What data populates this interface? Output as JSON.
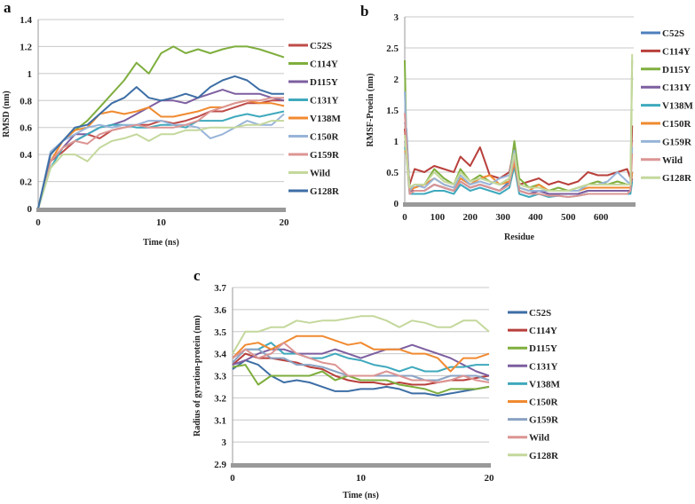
{
  "chart_data": [
    {
      "panel": "a",
      "type": "line",
      "xlabel": "Time (ns)",
      "ylabel": "RMSD (nm)",
      "xlim": [
        0,
        20
      ],
      "ylim": [
        0,
        1.4
      ],
      "xticks": [
        0,
        10,
        20
      ],
      "yticks": [
        0,
        0.2,
        0.4,
        0.6,
        0.8,
        1,
        1.2,
        1.4
      ],
      "grid": true,
      "legend": "right",
      "x": [
        0,
        1,
        2,
        3,
        4,
        5,
        6,
        7,
        8,
        9,
        10,
        11,
        12,
        13,
        14,
        15,
        16,
        17,
        18,
        19,
        20
      ],
      "series": [
        {
          "name": "C52S",
          "color": "#be4b48",
          "values": [
            0,
            0.35,
            0.42,
            0.5,
            0.55,
            0.52,
            0.58,
            0.6,
            0.62,
            0.62,
            0.65,
            0.63,
            0.65,
            0.68,
            0.72,
            0.72,
            0.75,
            0.78,
            0.78,
            0.8,
            0.8
          ]
        },
        {
          "name": "C114Y",
          "color": "#7fae3e",
          "values": [
            0,
            0.4,
            0.5,
            0.58,
            0.65,
            0.75,
            0.85,
            0.95,
            1.08,
            1.0,
            1.15,
            1.2,
            1.15,
            1.18,
            1.15,
            1.18,
            1.2,
            1.2,
            1.18,
            1.15,
            1.12
          ]
        },
        {
          "name": "D115Y",
          "color": "#7d5fa0",
          "values": [
            0,
            0.35,
            0.45,
            0.55,
            0.55,
            0.6,
            0.62,
            0.65,
            0.7,
            0.75,
            0.8,
            0.8,
            0.78,
            0.82,
            0.85,
            0.88,
            0.85,
            0.85,
            0.85,
            0.82,
            0.8
          ]
        },
        {
          "name": "C131Y",
          "color": "#3fa9bd",
          "values": [
            0,
            0.3,
            0.45,
            0.5,
            0.55,
            0.6,
            0.62,
            0.62,
            0.6,
            0.6,
            0.62,
            0.62,
            0.6,
            0.65,
            0.65,
            0.65,
            0.68,
            0.7,
            0.68,
            0.7,
            0.72
          ]
        },
        {
          "name": "V138M",
          "color": "#f08a30",
          "values": [
            0,
            0.35,
            0.5,
            0.58,
            0.6,
            0.7,
            0.72,
            0.7,
            0.72,
            0.75,
            0.68,
            0.68,
            0.7,
            0.72,
            0.75,
            0.75,
            0.78,
            0.8,
            0.78,
            0.78,
            0.76
          ]
        },
        {
          "name": "C150R",
          "color": "#98b4d8",
          "values": [
            0,
            0.42,
            0.5,
            0.55,
            0.6,
            0.62,
            0.6,
            0.62,
            0.62,
            0.65,
            0.65,
            0.62,
            0.62,
            0.6,
            0.52,
            0.55,
            0.6,
            0.65,
            0.62,
            0.62,
            0.7
          ]
        },
        {
          "name": "G159R",
          "color": "#dc9593",
          "values": [
            0,
            0.35,
            0.45,
            0.5,
            0.48,
            0.55,
            0.58,
            0.6,
            0.62,
            0.6,
            0.6,
            0.6,
            0.62,
            0.65,
            0.72,
            0.75,
            0.78,
            0.8,
            0.8,
            0.82,
            0.82
          ]
        },
        {
          "name": "Wild",
          "color": "#c4d89c",
          "values": [
            0,
            0.3,
            0.4,
            0.4,
            0.35,
            0.45,
            0.5,
            0.52,
            0.55,
            0.5,
            0.55,
            0.55,
            0.58,
            0.58,
            0.6,
            0.6,
            0.6,
            0.62,
            0.62,
            0.65,
            0.65
          ]
        },
        {
          "name": "G128R",
          "color": "#3d6ea5",
          "values": [
            0,
            0.4,
            0.5,
            0.6,
            0.62,
            0.7,
            0.78,
            0.82,
            0.9,
            0.82,
            0.8,
            0.82,
            0.85,
            0.82,
            0.9,
            0.95,
            0.98,
            0.95,
            0.88,
            0.85,
            0.85
          ]
        }
      ]
    },
    {
      "panel": "b",
      "type": "line",
      "xlabel": "Residue",
      "ylabel": "RMSF-Proein (nm)",
      "xlim": [
        0,
        700
      ],
      "ylim": [
        0,
        3
      ],
      "xticks": [
        0,
        100,
        200,
        300,
        400,
        500,
        600
      ],
      "yticks": [
        0,
        0.5,
        1,
        1.5,
        2,
        2.5,
        3
      ],
      "grid": true,
      "legend": "right",
      "x": [
        0,
        5,
        15,
        30,
        60,
        90,
        120,
        150,
        170,
        200,
        230,
        260,
        290,
        320,
        335,
        350,
        380,
        410,
        440,
        470,
        500,
        530,
        560,
        590,
        620,
        650,
        680,
        690,
        695
      ],
      "series": [
        {
          "name": "C52S",
          "color": "#4f7fbc",
          "values": [
            1.3,
            1.2,
            0.2,
            0.2,
            0.2,
            0.3,
            0.25,
            0.2,
            0.35,
            0.25,
            0.3,
            0.25,
            0.2,
            0.35,
            0.7,
            0.2,
            0.15,
            0.2,
            0.15,
            0.15,
            0.15,
            0.15,
            0.2,
            0.2,
            0.2,
            0.2,
            0.2,
            0.2,
            0.5
          ]
        },
        {
          "name": "C114Y",
          "color": "#b8403c",
          "values": [
            1.2,
            0.9,
            0.3,
            0.55,
            0.5,
            0.6,
            0.55,
            0.5,
            0.75,
            0.6,
            0.9,
            0.45,
            0.4,
            0.5,
            0.9,
            0.3,
            0.35,
            0.4,
            0.3,
            0.35,
            0.3,
            0.35,
            0.5,
            0.45,
            0.45,
            0.5,
            0.55,
            0.4,
            1.25
          ]
        },
        {
          "name": "D115Y",
          "color": "#7fae3e",
          "values": [
            2.3,
            1.0,
            0.25,
            0.3,
            0.3,
            0.55,
            0.4,
            0.3,
            0.55,
            0.35,
            0.45,
            0.35,
            0.3,
            0.4,
            1.0,
            0.4,
            0.25,
            0.3,
            0.2,
            0.25,
            0.2,
            0.25,
            0.3,
            0.35,
            0.3,
            0.35,
            0.3,
            0.3,
            2.3
          ]
        },
        {
          "name": "C131Y",
          "color": "#7d5fa0",
          "values": [
            1.0,
            0.9,
            0.2,
            0.2,
            0.2,
            0.3,
            0.25,
            0.2,
            0.35,
            0.25,
            0.3,
            0.25,
            0.2,
            0.3,
            0.7,
            0.2,
            0.15,
            0.2,
            0.15,
            0.15,
            0.15,
            0.15,
            0.2,
            0.2,
            0.2,
            0.2,
            0.2,
            0.2,
            0.4
          ]
        },
        {
          "name": "V138M",
          "color": "#3fa9bd",
          "values": [
            0.9,
            0.8,
            0.15,
            0.15,
            0.15,
            0.2,
            0.2,
            0.15,
            0.3,
            0.2,
            0.25,
            0.2,
            0.15,
            0.25,
            0.6,
            0.15,
            0.1,
            0.15,
            0.1,
            0.12,
            0.1,
            0.12,
            0.15,
            0.15,
            0.15,
            0.15,
            0.15,
            0.15,
            0.35
          ]
        },
        {
          "name": "C150R",
          "color": "#f08a30",
          "values": [
            0.85,
            0.8,
            0.2,
            0.25,
            0.3,
            0.4,
            0.3,
            0.25,
            0.4,
            0.3,
            0.4,
            0.45,
            0.3,
            0.35,
            0.65,
            0.25,
            0.2,
            0.3,
            0.2,
            0.2,
            0.2,
            0.2,
            0.25,
            0.25,
            0.25,
            0.25,
            0.25,
            0.25,
            0.5
          ]
        },
        {
          "name": "G159R",
          "color": "#98b4d8",
          "values": [
            1.8,
            1.1,
            0.2,
            0.3,
            0.25,
            0.4,
            0.3,
            0.25,
            0.45,
            0.3,
            0.35,
            0.3,
            0.4,
            0.45,
            0.85,
            0.25,
            0.2,
            0.2,
            0.2,
            0.2,
            0.2,
            0.2,
            0.3,
            0.3,
            0.35,
            0.5,
            0.35,
            0.3,
            0.9
          ]
        },
        {
          "name": "Wild",
          "color": "#dc9593",
          "values": [
            1.45,
            1.0,
            0.15,
            0.2,
            0.2,
            0.3,
            0.25,
            0.2,
            0.35,
            0.25,
            0.3,
            0.25,
            0.2,
            0.3,
            0.75,
            0.2,
            0.15,
            0.15,
            0.12,
            0.12,
            0.1,
            0.12,
            0.15,
            0.15,
            0.15,
            0.15,
            0.15,
            0.2,
            0.8
          ]
        },
        {
          "name": "G128R",
          "color": "#c4d89c",
          "values": [
            1.1,
            0.8,
            0.25,
            0.3,
            0.3,
            0.5,
            0.35,
            0.3,
            0.5,
            0.35,
            0.4,
            0.35,
            0.3,
            0.4,
            0.8,
            0.3,
            0.25,
            0.25,
            0.2,
            0.2,
            0.2,
            0.25,
            0.3,
            0.3,
            0.3,
            0.3,
            0.3,
            0.3,
            2.4
          ]
        }
      ]
    },
    {
      "panel": "c",
      "type": "line",
      "xlabel": "Time (ns)",
      "ylabel": "Radius of gyration-protein (nm)",
      "xlim": [
        0,
        20
      ],
      "ylim": [
        2.9,
        3.7
      ],
      "xticks": [
        0,
        10,
        20
      ],
      "yticks": [
        2.9,
        3,
        3.1,
        3.2,
        3.3,
        3.4,
        3.5,
        3.6,
        3.7
      ],
      "grid": true,
      "legend": "right",
      "x": [
        0,
        1,
        2,
        3,
        4,
        5,
        6,
        7,
        8,
        9,
        10,
        11,
        12,
        13,
        14,
        15,
        16,
        17,
        18,
        19,
        20
      ],
      "series": [
        {
          "name": "C52S",
          "color": "#3d6ea5",
          "values": [
            3.33,
            3.37,
            3.35,
            3.3,
            3.27,
            3.28,
            3.27,
            3.25,
            3.23,
            3.23,
            3.24,
            3.24,
            3.25,
            3.24,
            3.22,
            3.22,
            3.21,
            3.22,
            3.23,
            3.24,
            3.25
          ]
        },
        {
          "name": "C114Y",
          "color": "#b8403c",
          "values": [
            3.35,
            3.4,
            3.38,
            3.38,
            3.37,
            3.36,
            3.34,
            3.33,
            3.3,
            3.28,
            3.27,
            3.27,
            3.26,
            3.27,
            3.26,
            3.26,
            3.27,
            3.28,
            3.28,
            3.29,
            3.3
          ]
        },
        {
          "name": "D115Y",
          "color": "#7fae3e",
          "values": [
            3.34,
            3.35,
            3.26,
            3.3,
            3.3,
            3.3,
            3.3,
            3.32,
            3.28,
            3.3,
            3.28,
            3.28,
            3.28,
            3.26,
            3.25,
            3.24,
            3.22,
            3.24,
            3.24,
            3.24,
            3.25
          ]
        },
        {
          "name": "C131Y",
          "color": "#7d5fa0",
          "values": [
            3.35,
            3.37,
            3.4,
            3.42,
            3.42,
            3.4,
            3.4,
            3.4,
            3.42,
            3.4,
            3.38,
            3.4,
            3.42,
            3.42,
            3.44,
            3.42,
            3.4,
            3.38,
            3.35,
            3.32,
            3.3
          ]
        },
        {
          "name": "V138M",
          "color": "#3fa9bd",
          "values": [
            3.38,
            3.42,
            3.42,
            3.45,
            3.4,
            3.4,
            3.38,
            3.38,
            3.4,
            3.38,
            3.37,
            3.35,
            3.34,
            3.32,
            3.34,
            3.32,
            3.32,
            3.34,
            3.34,
            3.35,
            3.35
          ]
        },
        {
          "name": "C150R",
          "color": "#f08a30",
          "values": [
            3.38,
            3.44,
            3.45,
            3.42,
            3.45,
            3.48,
            3.48,
            3.48,
            3.46,
            3.44,
            3.45,
            3.42,
            3.42,
            3.42,
            3.4,
            3.4,
            3.38,
            3.32,
            3.38,
            3.38,
            3.4
          ]
        },
        {
          "name": "G159R",
          "color": "#8aa3c4",
          "values": [
            3.36,
            3.42,
            3.42,
            3.38,
            3.38,
            3.35,
            3.35,
            3.34,
            3.32,
            3.3,
            3.3,
            3.3,
            3.3,
            3.3,
            3.3,
            3.28,
            3.28,
            3.3,
            3.3,
            3.3,
            3.28
          ]
        },
        {
          "name": "Wild",
          "color": "#dc9593",
          "values": [
            3.38,
            3.42,
            3.38,
            3.4,
            3.45,
            3.4,
            3.38,
            3.36,
            3.35,
            3.3,
            3.3,
            3.3,
            3.32,
            3.3,
            3.28,
            3.28,
            3.27,
            3.28,
            3.3,
            3.28,
            3.27
          ]
        },
        {
          "name": "G128R",
          "color": "#c4d89c",
          "values": [
            3.4,
            3.5,
            3.5,
            3.52,
            3.52,
            3.55,
            3.54,
            3.55,
            3.55,
            3.56,
            3.57,
            3.57,
            3.55,
            3.52,
            3.55,
            3.54,
            3.52,
            3.52,
            3.55,
            3.55,
            3.5
          ]
        }
      ]
    }
  ]
}
